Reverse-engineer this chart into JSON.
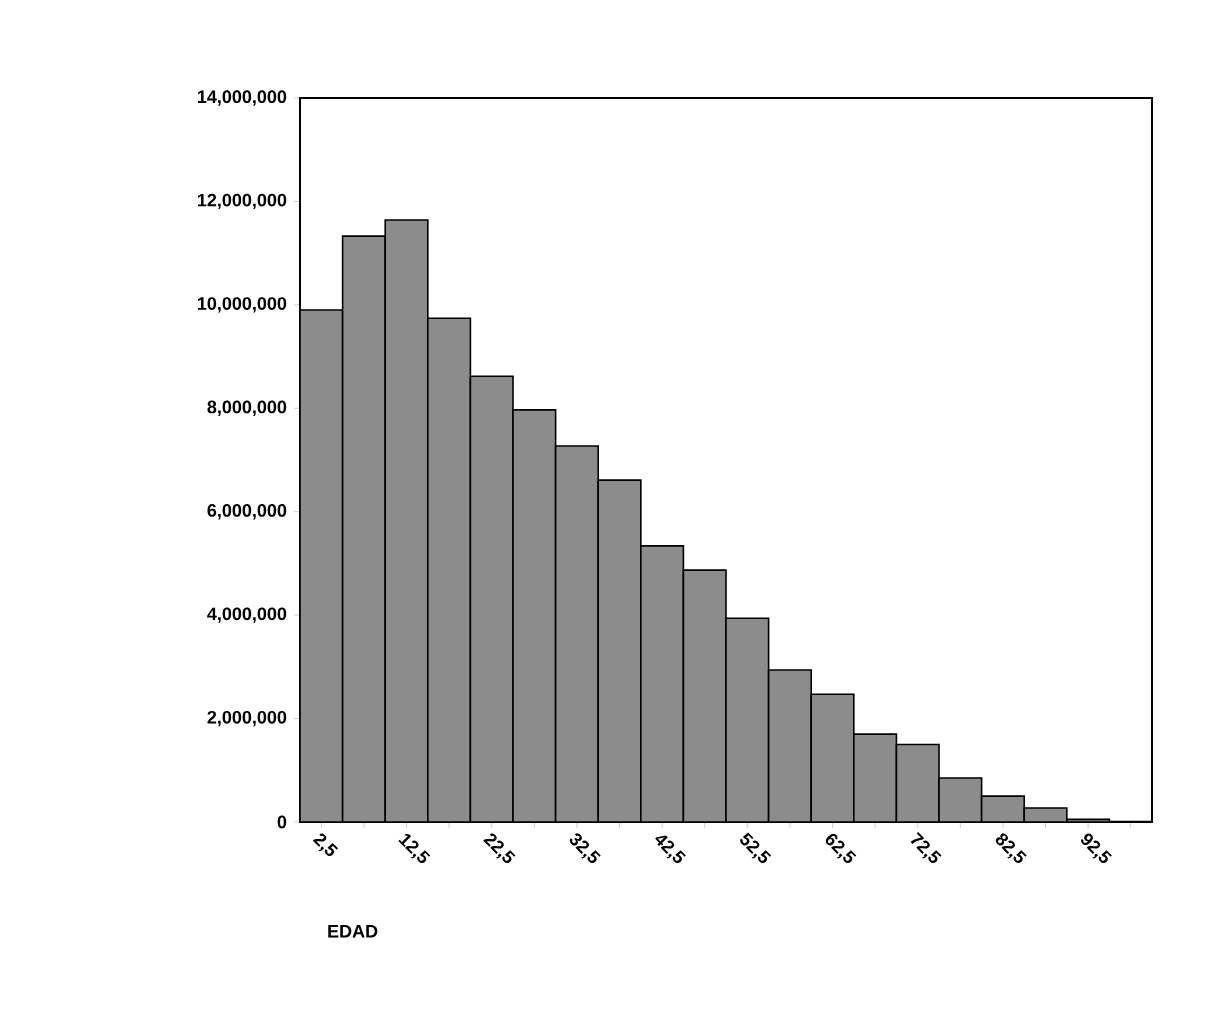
{
  "chart_data": {
    "type": "histogram",
    "xlabel": "EDAD",
    "bins": [
      0,
      5,
      10,
      15,
      20,
      25,
      30,
      35,
      40,
      45,
      50,
      55,
      60,
      65,
      70,
      75,
      80,
      85,
      90,
      95,
      100
    ],
    "values": [
      9900000,
      11330000,
      11640000,
      9740000,
      8620000,
      7970000,
      7270000,
      6610000,
      5340000,
      4870000,
      3940000,
      2940000,
      2470000,
      1700000,
      1500000,
      850000,
      500000,
      270000,
      50000,
      10000
    ],
    "color": "#8c8c8c",
    "xlim": [
      0,
      100
    ],
    "xticks": [
      {
        "value": 2.5,
        "label": "2,5"
      },
      {
        "value": 7.5,
        "label": null
      },
      {
        "value": 12.5,
        "label": "12,5"
      },
      {
        "value": 17.5,
        "label": null
      },
      {
        "value": 22.5,
        "label": "22,5"
      },
      {
        "value": 27.5,
        "label": null
      },
      {
        "value": 32.5,
        "label": "32,5"
      },
      {
        "value": 37.5,
        "label": null
      },
      {
        "value": 42.5,
        "label": "42,5"
      },
      {
        "value": 47.5,
        "label": null
      },
      {
        "value": 52.5,
        "label": "52,5"
      },
      {
        "value": 57.5,
        "label": null
      },
      {
        "value": 62.5,
        "label": "62,5"
      },
      {
        "value": 67.5,
        "label": null
      },
      {
        "value": 72.5,
        "label": "72,5"
      },
      {
        "value": 77.5,
        "label": null
      },
      {
        "value": 82.5,
        "label": "82,5"
      },
      {
        "value": 87.5,
        "label": null
      },
      {
        "value": 92.5,
        "label": "92,5"
      },
      {
        "value": 97.5,
        "label": null
      }
    ],
    "ylim": [
      0,
      14000000
    ],
    "yticks": [
      {
        "value": 0,
        "label": "0"
      },
      {
        "value": 2000000,
        "label": "2,000,000"
      },
      {
        "value": 4000000,
        "label": "4,000,000"
      },
      {
        "value": 6000000,
        "label": "6,000,000"
      },
      {
        "value": 8000000,
        "label": "8,000,000"
      },
      {
        "value": 10000000,
        "label": "10,000,000"
      },
      {
        "value": 12000000,
        "label": "12,000,000"
      },
      {
        "value": 14000000,
        "label": "14,000,000"
      }
    ],
    "grid": false
  }
}
